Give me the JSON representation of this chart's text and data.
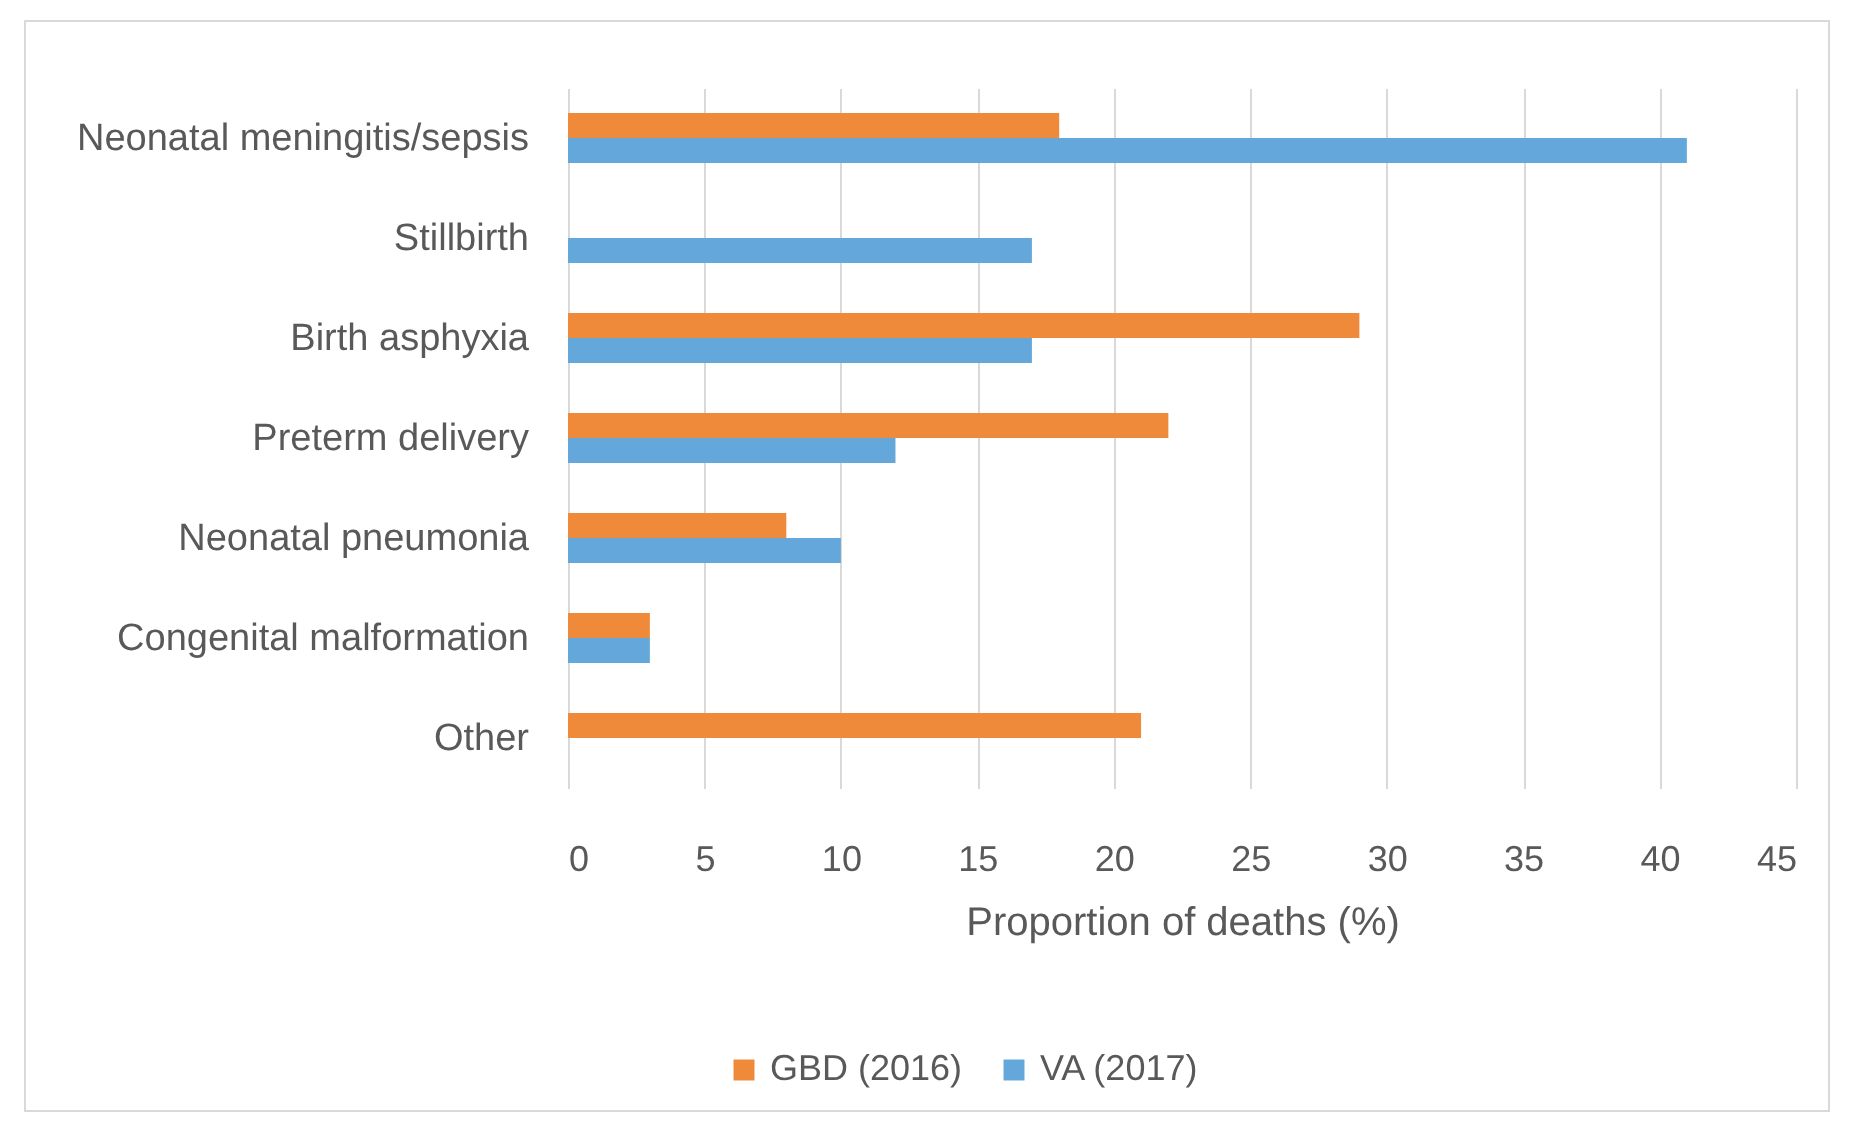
{
  "chart_data": {
    "type": "bar",
    "orientation": "horizontal",
    "categories": [
      "Neonatal meningitis/sepsis",
      "Stillbirth",
      "Birth asphyxia",
      "Preterm delivery",
      "Neonatal pneumonia",
      "Congenital malformation",
      "Other"
    ],
    "series": [
      {
        "name": "GBD (2016)",
        "color": "#ef8a3a",
        "values": [
          18,
          null,
          29,
          22,
          8,
          3,
          21
        ]
      },
      {
        "name": "VA (2017)",
        "color": "#64a7db",
        "values": [
          41,
          17,
          17,
          12,
          10,
          3,
          null
        ]
      }
    ],
    "xlabel": "Proportion of deaths (%)",
    "xlim": [
      0,
      45
    ],
    "xticks": [
      0,
      5,
      10,
      15,
      20,
      25,
      30,
      35,
      40,
      45
    ],
    "grid": "x",
    "legend": "bottom"
  }
}
